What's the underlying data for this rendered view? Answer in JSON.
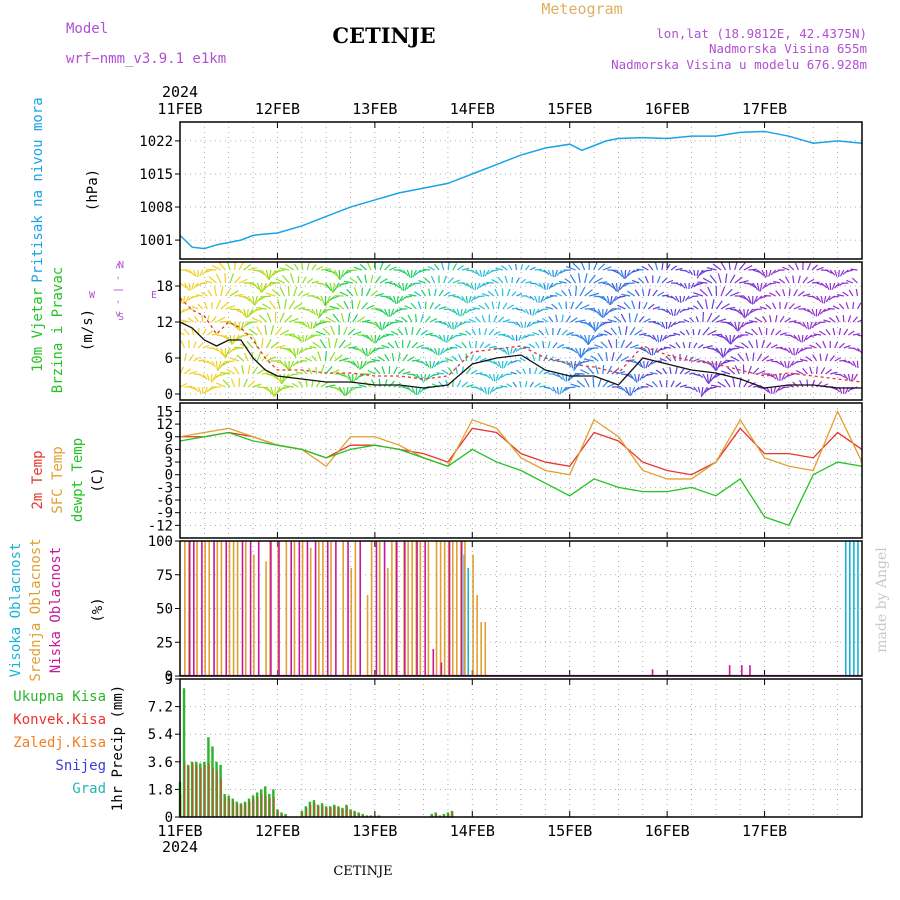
{
  "header": {
    "model_label": "Model",
    "model_name": "wrf−nmm_v3.9.1  e1km",
    "title": "CETINJE",
    "meteogram": "Meteogram",
    "lonlat": "lon,lat (18.9812E, 42.4375N)",
    "elev": "Nadmorska Visina 655m",
    "elev_model": "Nadmorska Visina u modelu 676.928m",
    "year_top": "2024",
    "year_bottom": "2024",
    "footer": "CETINJE",
    "watermark": "made by Angel"
  },
  "colors": {
    "pressure": "#1aa3e8",
    "t2m": "#e8352e",
    "sfc": "#e0a030",
    "dew": "#22c422",
    "low": "#c8189a",
    "mid": "#e0a030",
    "high": "#1ab3d8",
    "total": "#2ab52a",
    "conv": "#e8352e",
    "frozen": "#f08020",
    "snow": "#3c3cd8",
    "hail": "#22b8b0",
    "wind": "#111111",
    "gust": "#e8352e",
    "meteo": "#e0b060",
    "model": "#b050d0"
  },
  "x_ticks": [
    "11FEB",
    "12FEB",
    "13FEB",
    "14FEB",
    "15FEB",
    "16FEB",
    "17FEB"
  ],
  "chart_data": [
    {
      "type": "line",
      "ylabel_lines": [
        "Pritisak na nivou mora",
        "(hPa)"
      ],
      "yticks": [
        1001,
        1008,
        1015,
        1022
      ],
      "ylim": [
        997,
        1026
      ],
      "x_hours": [
        0,
        3,
        6,
        9,
        12,
        15,
        18,
        21,
        24,
        30,
        36,
        42,
        48,
        54,
        60,
        66,
        72,
        75,
        78,
        84,
        90,
        96,
        99,
        102,
        105,
        108,
        114,
        120,
        126,
        132,
        138,
        144,
        150,
        156,
        162,
        168
      ],
      "series": [
        {
          "values": [
            1002,
            999.5,
            999.2,
            1000,
            1000.5,
            1001,
            1002,
            1002.3,
            1002.5,
            1004,
            1006,
            1008,
            1009.5,
            1011,
            1012,
            1013,
            1015,
            1016,
            1017,
            1019,
            1020.5,
            1021.3,
            1020,
            1021,
            1022,
            1022.5,
            1022.7,
            1022.5,
            1023,
            1023,
            1023.8,
            1024,
            1023,
            1021.5,
            1022,
            1021.5
          ]
        }
      ],
      "grid": true
    },
    {
      "type": "line",
      "ylabel_lines": [
        "10m Vjetar",
        "Brzina i Pravac",
        "(m/s)"
      ],
      "direction_legend": [
        "W",
        "< - | - >",
        "E",
        "N",
        "S"
      ],
      "yticks": [
        0,
        6,
        12,
        18
      ],
      "ylim": [
        -1,
        22
      ],
      "x_hours": [
        0,
        3,
        6,
        9,
        12,
        15,
        18,
        21,
        24,
        30,
        36,
        42,
        48,
        54,
        60,
        66,
        72,
        78,
        84,
        90,
        96,
        102,
        108,
        114,
        120,
        126,
        132,
        138,
        144,
        150,
        156,
        162,
        168
      ],
      "series": [
        {
          "values": [
            12,
            11,
            9,
            8,
            9,
            9,
            6,
            4,
            3,
            2.5,
            2,
            2,
            1.5,
            1.5,
            1,
            1.5,
            5,
            6,
            6.5,
            4,
            3,
            3,
            1.5,
            6,
            5,
            4,
            3.5,
            2.5,
            1,
            1.5,
            1.5,
            1,
            1
          ]
        },
        {
          "values": [
            16,
            14,
            13,
            10,
            12,
            11,
            9,
            6,
            4,
            4,
            3.5,
            3.5,
            3,
            3,
            2.5,
            3,
            7,
            7.5,
            8,
            6,
            5,
            4.5,
            3.5,
            8,
            6.5,
            5.5,
            5,
            4,
            3,
            3.5,
            3,
            2.5,
            2
          ]
        }
      ],
      "grid": true
    },
    {
      "type": "line",
      "ylabel_lines": [
        "2m Temp",
        "SFC Temp",
        "dewpt Temp",
        "(C)"
      ],
      "yticks": [
        -12,
        -9,
        -6,
        -3,
        0,
        3,
        6,
        9,
        12,
        15
      ],
      "ylim": [
        -15,
        17
      ],
      "x_hours": [
        0,
        6,
        12,
        18,
        24,
        30,
        36,
        42,
        48,
        54,
        60,
        66,
        72,
        78,
        84,
        90,
        96,
        102,
        108,
        114,
        120,
        126,
        132,
        138,
        144,
        150,
        156,
        162,
        168
      ],
      "series": [
        {
          "name": "2m Temp",
          "values": [
            9,
            9,
            10,
            9,
            7,
            6,
            4,
            7,
            7,
            6,
            5,
            3,
            11,
            10,
            5,
            3,
            2,
            10,
            8,
            3,
            1,
            0,
            3,
            11,
            5,
            5,
            4,
            10,
            6
          ]
        },
        {
          "name": "SFC Temp",
          "values": [
            9,
            10,
            11,
            9,
            7,
            6,
            2,
            9,
            9,
            7,
            4,
            2,
            13,
            11,
            4,
            1,
            0,
            13,
            9,
            1,
            -1,
            -1,
            3,
            13,
            4,
            2,
            1,
            15,
            3
          ]
        },
        {
          "name": "dewpt Temp",
          "values": [
            8,
            9,
            10,
            8,
            7,
            6,
            4,
            6,
            7,
            6,
            4,
            2,
            6,
            3,
            1,
            -2,
            -5,
            -1,
            -3,
            -4,
            -4,
            -3,
            -5,
            -1,
            -10,
            -12,
            0,
            3,
            2
          ]
        }
      ],
      "grid": true
    },
    {
      "type": "bar",
      "ylabel_lines": [
        "Visoka Oblacnost",
        "Srednja Oblacnost",
        "Niska Oblacnost",
        "(%)"
      ],
      "yticks": [
        0,
        25,
        50,
        75,
        100
      ],
      "ylim": [
        0,
        100
      ],
      "series": [
        {
          "name": "Visoka Oblacnost",
          "x_hours": [
            70,
            71,
            164,
            165,
            166,
            167
          ],
          "values": [
            90,
            80,
            100,
            100,
            100,
            100
          ]
        },
        {
          "name": "Srednja Oblacnost",
          "x_hours": [
            1,
            2,
            4,
            6,
            7,
            9,
            10,
            12,
            13,
            14,
            16,
            18,
            21,
            22,
            24,
            26,
            28,
            30,
            32,
            34,
            35,
            37,
            40,
            42,
            43,
            46,
            47,
            49,
            51,
            52,
            53,
            55,
            56,
            57,
            58,
            59,
            61,
            63,
            64,
            65,
            66,
            67,
            68,
            69,
            70,
            72,
            73,
            74,
            75
          ],
          "values": [
            100,
            100,
            100,
            100,
            100,
            100,
            100,
            100,
            100,
            100,
            100,
            90,
            85,
            100,
            100,
            100,
            100,
            100,
            95,
            100,
            100,
            100,
            100,
            80,
            100,
            60,
            100,
            100,
            80,
            100,
            100,
            100,
            100,
            100,
            100,
            100,
            100,
            100,
            100,
            100,
            100,
            100,
            100,
            100,
            100,
            90,
            60,
            40,
            40
          ]
        },
        {
          "name": "Niska Oblacnost",
          "x_hours": [
            2,
            3,
            5,
            8,
            11,
            15,
            17,
            19,
            22,
            24,
            27,
            29,
            31,
            33,
            36,
            38,
            41,
            44,
            48,
            50,
            53,
            55,
            58,
            60,
            62,
            64,
            66,
            69,
            116,
            135,
            138,
            140
          ],
          "values": [
            100,
            100,
            100,
            100,
            100,
            100,
            100,
            100,
            100,
            100,
            100,
            100,
            100,
            100,
            100,
            100,
            100,
            100,
            100,
            100,
            100,
            100,
            100,
            100,
            20,
            10,
            100,
            100,
            5,
            8,
            8,
            8
          ]
        }
      ],
      "grid": true
    },
    {
      "type": "bar",
      "ylabel_lines": [
        "1hr Precip (mm)"
      ],
      "legend": [
        "Ukupna Kisa",
        "Konvek.Kisa",
        "Zaledj.Kisa",
        "Snijeg",
        "Grad"
      ],
      "yticks": [
        0,
        1.8,
        3.6,
        5.4,
        7.2,
        9
      ],
      "ylim": [
        0,
        9
      ],
      "x_hours": [
        0,
        1,
        2,
        3,
        4,
        5,
        6,
        7,
        8,
        9,
        10,
        11,
        12,
        13,
        14,
        15,
        16,
        17,
        18,
        19,
        20,
        21,
        22,
        23,
        24,
        25,
        26,
        30,
        31,
        32,
        33,
        34,
        35,
        36,
        37,
        38,
        39,
        40,
        41,
        42,
        43,
        44,
        45,
        46,
        47,
        48,
        49,
        62,
        63,
        64,
        65,
        66,
        67
      ],
      "series": [
        {
          "name": "Ukupna Kisa",
          "values": [
            2.3,
            8.4,
            3.4,
            3.6,
            3.6,
            3.5,
            3.6,
            5.2,
            4.6,
            3.6,
            3.4,
            1.5,
            1.4,
            1.2,
            1,
            0.9,
            1,
            1.2,
            1.4,
            1.6,
            1.8,
            2,
            1.5,
            1.8,
            0.5,
            0.3,
            0.2,
            0.4,
            0.7,
            1,
            1.1,
            0.8,
            0.9,
            0.7,
            0.7,
            0.8,
            0.7,
            0.6,
            0.8,
            0.5,
            0.4,
            0.3,
            0.2,
            0.1,
            0.1,
            0.1,
            0.1,
            0.2,
            0.3,
            0.1,
            0.2,
            0.3,
            0.4
          ]
        },
        {
          "name": "Konvek.Kisa",
          "values": [
            1.5,
            3.5,
            3.3,
            3.5,
            3.4,
            3.2,
            3.4,
            3.5,
            3.2,
            3,
            2.5,
            1.3,
            1.2,
            1,
            0.8,
            0.8,
            0.9,
            1,
            1.2,
            1.3,
            1.5,
            1.4,
            1.2,
            1.3,
            0.4,
            0.2,
            0.1,
            0.3,
            0.6,
            0.8,
            0.9,
            0.7,
            0.7,
            0.6,
            0.6,
            0.7,
            0.6,
            0.5,
            0.7,
            0.4,
            0.3,
            0.2,
            0.1,
            0.1,
            0.1,
            0.1,
            0.1,
            0.1,
            0.2,
            0.1,
            0.1,
            0.2,
            0.3
          ]
        }
      ],
      "grid": true
    }
  ]
}
